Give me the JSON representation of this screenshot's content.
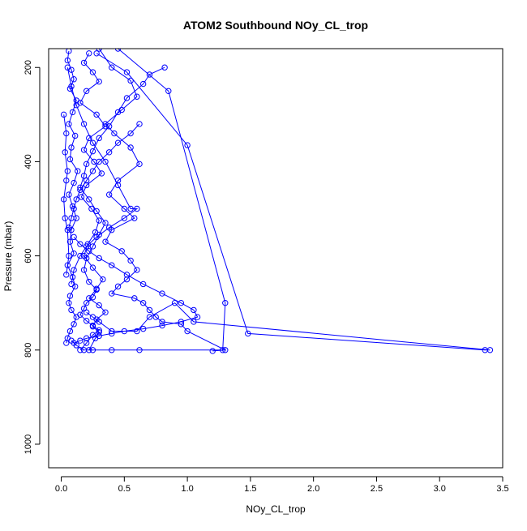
{
  "chart_data": {
    "type": "line",
    "title": "ATOM2 Southbound NOy_CL_trop",
    "xlabel": "NOy_CL_trop",
    "ylabel": "Pressure (mbar)",
    "xlim": [
      -0.1,
      3.5
    ],
    "ylim": [
      1050,
      160
    ],
    "y_reversed": true,
    "grid": false,
    "line_color": "#0000ff",
    "marker": "open-circle",
    "x_ticks": [
      "0.0",
      "0.5",
      "1.0",
      "1.5",
      "2.0",
      "2.5",
      "3.0",
      "3.5"
    ],
    "x_tick_values": [
      0,
      0.5,
      1.0,
      1.5,
      2.0,
      2.5,
      3.0,
      3.5
    ],
    "y_ticks": [
      "200",
      "400",
      "600",
      "800",
      "1000"
    ],
    "y_tick_values": [
      200,
      400,
      600,
      800,
      1000
    ],
    "series": [
      {
        "x": [
          0.06,
          0.05,
          0.08,
          0.1,
          0.07,
          0.12,
          0.09,
          0.06,
          0.11,
          0.08,
          0.07,
          0.13,
          0.1,
          0.06,
          0.09,
          0.12,
          0.08,
          0.07,
          0.1,
          0.05,
          0.09,
          0.11,
          0.07,
          0.06,
          0.08,
          0.12,
          0.1,
          0.07,
          0.05,
          0.04
        ],
        "y": [
          165,
          185,
          205,
          225,
          245,
          270,
          295,
          320,
          345,
          370,
          395,
          420,
          445,
          470,
          495,
          520,
          545,
          570,
          595,
          620,
          645,
          665,
          685,
          700,
          715,
          730,
          745,
          760,
          775,
          785
        ]
      },
      {
        "x": [
          0.22,
          0.18,
          0.25,
          0.3,
          0.2,
          0.15,
          0.28,
          0.35,
          0.22,
          0.18,
          0.26,
          0.32,
          0.2,
          0.16,
          0.24,
          0.3,
          0.27,
          0.21,
          0.18,
          0.25,
          0.33,
          0.28,
          0.22,
          0.3,
          0.35,
          0.28,
          0.25,
          0.3,
          0.27,
          0.22
        ],
        "y": [
          170,
          190,
          210,
          230,
          250,
          275,
          300,
          325,
          350,
          375,
          400,
          425,
          450,
          475,
          500,
          525,
          550,
          575,
          600,
          625,
          650,
          670,
          690,
          705,
          720,
          735,
          750,
          762,
          775,
          800
        ]
      },
      {
        "x": [
          0.3,
          0.4,
          0.55,
          0.6,
          0.48,
          0.35,
          0.42,
          0.55,
          0.62,
          0.45,
          0.38,
          0.5,
          0.58,
          0.4,
          0.35,
          0.48,
          0.55,
          0.6,
          0.52,
          0.45,
          0.4,
          0.58,
          0.65,
          0.7,
          0.75,
          0.8,
          0.95,
          1.0,
          1.3,
          1.2
        ],
        "y": [
          160,
          200,
          228,
          262,
          290,
          320,
          340,
          370,
          405,
          440,
          470,
          500,
          520,
          545,
          570,
          590,
          610,
          630,
          650,
          665,
          680,
          690,
          700,
          715,
          730,
          740,
          745,
          760,
          800,
          802
        ]
      },
      {
        "x": [
          0.82,
          0.7,
          0.65,
          0.52,
          0.45,
          0.38,
          0.3,
          0.25,
          0.2,
          0.18,
          0.15,
          0.22,
          0.28,
          0.35,
          0.3,
          0.25,
          0.2,
          0.18,
          0.22,
          0.28,
          0.25,
          0.2,
          0.18,
          0.15,
          0.2,
          0.25,
          0.3,
          0.25,
          0.2,
          0.15
        ],
        "y": [
          200,
          215,
          235,
          265,
          295,
          325,
          350,
          378,
          405,
          430,
          455,
          480,
          505,
          530,
          555,
          580,
          605,
          630,
          655,
          672,
          688,
          700,
          712,
          725,
          738,
          748,
          758,
          768,
          785,
          800
        ]
      },
      {
        "x": [
          0.28,
          0.52,
          1.0,
          1.48,
          3.36,
          3.4,
          1.05,
          0.9,
          0.7,
          0.6,
          0.4,
          0.3,
          0.25,
          0.2
        ],
        "y": [
          170,
          210,
          365,
          765,
          800,
          800,
          740,
          700,
          730,
          760,
          760,
          740,
          730,
          720
        ]
      },
      {
        "x": [
          0.45,
          0.85,
          1.3,
          1.28,
          0.62,
          0.4,
          0.25,
          0.18,
          0.12,
          0.08
        ],
        "y": [
          160,
          250,
          700,
          800,
          800,
          800,
          800,
          800,
          790,
          780
        ]
      },
      {
        "x": [
          0.05,
          0.08,
          0.12,
          0.18,
          0.25,
          0.35,
          0.45,
          0.55,
          0.6,
          0.5,
          0.38,
          0.28,
          0.2,
          0.15,
          0.1,
          0.08
        ],
        "y": [
          200,
          240,
          280,
          320,
          360,
          400,
          450,
          500,
          500,
          520,
          540,
          560,
          580,
          600,
          630,
          660
        ]
      },
      {
        "x": [
          0.62,
          0.55,
          0.45,
          0.38,
          0.3,
          0.25,
          0.2,
          0.15,
          0.12,
          0.1,
          0.08,
          0.06
        ],
        "y": [
          320,
          340,
          360,
          380,
          400,
          420,
          440,
          460,
          480,
          500,
          520,
          540
        ]
      },
      {
        "x": [
          0.02,
          0.04,
          0.03,
          0.05,
          0.04,
          0.02,
          0.03,
          0.05,
          0.06,
          0.04
        ],
        "y": [
          300,
          340,
          380,
          420,
          440,
          480,
          520,
          545,
          600,
          640
        ]
      },
      {
        "x": [
          0.1,
          0.15,
          0.22,
          0.3,
          0.4,
          0.52,
          0.65,
          0.8,
          0.95,
          1.05,
          1.08,
          0.95,
          0.8,
          0.65,
          0.5,
          0.4,
          0.3,
          0.2,
          0.15,
          0.1
        ],
        "y": [
          560,
          575,
          590,
          605,
          620,
          640,
          660,
          680,
          700,
          715,
          730,
          740,
          748,
          755,
          760,
          765,
          770,
          775,
          780,
          785
        ]
      }
    ]
  }
}
